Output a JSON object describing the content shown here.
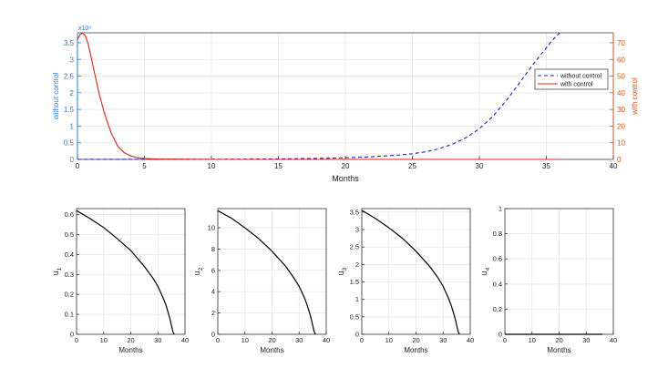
{
  "chart_data": [
    {
      "type": "line",
      "xlabel": "Months",
      "xlim": [
        0,
        40
      ],
      "xticks": [
        0,
        5,
        10,
        15,
        20,
        25,
        30,
        35,
        40
      ],
      "grid": true,
      "legend_position": "top-right",
      "y_left": {
        "label": "without control",
        "lim": [
          0,
          38000
        ],
        "ticks": [
          0,
          5000,
          10000,
          15000,
          20000,
          25000,
          30000,
          35000
        ],
        "tick_labels": [
          "0",
          "0.5",
          "1",
          "1.5",
          "2",
          "2.5",
          "3",
          "3.5"
        ],
        "exponent_label": "x10⁴",
        "color": "#2b7bd6"
      },
      "y_right": {
        "label": "with control",
        "lim": [
          0,
          76
        ],
        "ticks": [
          0,
          10,
          20,
          30,
          40,
          50,
          60,
          70
        ],
        "color": "#d95319"
      },
      "series": [
        {
          "name": "without control",
          "axis": "left",
          "style": "dashed",
          "color": "#1f1fcf",
          "x": [
            0,
            5,
            10,
            15,
            18,
            20,
            22,
            24,
            25,
            26,
            27,
            28,
            29,
            30,
            31,
            32,
            33,
            34,
            35,
            35.5,
            36
          ],
          "y": [
            0,
            20,
            60,
            150,
            300,
            500,
            800,
            1300,
            1700,
            2300,
            3200,
            4600,
            6500,
            9200,
            12900,
            17600,
            23000,
            28500,
            33500,
            36000,
            38000
          ]
        },
        {
          "name": "with control",
          "axis": "right",
          "style": "solid",
          "color": "#e0231b",
          "x": [
            0,
            0.2,
            0.4,
            0.6,
            0.8,
            1.0,
            1.3,
            1.6,
            2.0,
            2.5,
            3.0,
            3.5,
            4.0,
            4.5,
            5.0,
            6,
            10,
            20,
            30,
            36
          ],
          "y": [
            72,
            75,
            76,
            74,
            69,
            62,
            51,
            40,
            28,
            16,
            8,
            4,
            2,
            1,
            0.5,
            0.2,
            0,
            0,
            0,
            0
          ]
        }
      ]
    },
    {
      "type": "line",
      "xlabel": "Months",
      "ylabel": "u",
      "ylabel_sub": "1",
      "xlim": [
        0,
        40
      ],
      "ylim": [
        0,
        0.63
      ],
      "xticks": [
        0,
        10,
        20,
        30,
        40
      ],
      "yticks": [
        0,
        0.1,
        0.2,
        0.3,
        0.4,
        0.5,
        0.6
      ],
      "grid": true,
      "series": [
        {
          "color": "#000000",
          "x": [
            0,
            5,
            10,
            15,
            20,
            25,
            28,
            30,
            32,
            33,
            34,
            34.5,
            35,
            35.5,
            36
          ],
          "y": [
            0.62,
            0.58,
            0.535,
            0.48,
            0.42,
            0.34,
            0.285,
            0.24,
            0.18,
            0.145,
            0.1,
            0.075,
            0.045,
            0.015,
            0
          ]
        }
      ]
    },
    {
      "type": "line",
      "xlabel": "Months",
      "ylabel": "u",
      "ylabel_sub": "2",
      "xlim": [
        0,
        40
      ],
      "ylim": [
        0,
        11.8
      ],
      "xticks": [
        0,
        10,
        20,
        30,
        40
      ],
      "yticks": [
        0,
        2,
        4,
        6,
        8,
        10
      ],
      "grid": true,
      "series": [
        {
          "color": "#000000",
          "x": [
            0,
            5,
            10,
            15,
            20,
            25,
            28,
            30,
            32,
            33,
            34,
            34.5,
            35,
            35.5,
            36
          ],
          "y": [
            11.6,
            10.9,
            10.0,
            9.0,
            7.8,
            6.4,
            5.3,
            4.5,
            3.4,
            2.7,
            1.9,
            1.4,
            0.85,
            0.3,
            0
          ]
        }
      ]
    },
    {
      "type": "line",
      "xlabel": "Months",
      "ylabel": "u",
      "ylabel_sub": "3",
      "xlim": [
        0,
        40
      ],
      "ylim": [
        0,
        3.6
      ],
      "xticks": [
        0,
        10,
        20,
        30,
        40
      ],
      "yticks": [
        0,
        0.5,
        1,
        1.5,
        2,
        2.5,
        3,
        3.5
      ],
      "grid": true,
      "series": [
        {
          "color": "#000000",
          "x": [
            0,
            5,
            10,
            15,
            20,
            25,
            28,
            30,
            32,
            33,
            34,
            34.5,
            35,
            35.5,
            36
          ],
          "y": [
            3.55,
            3.32,
            3.05,
            2.75,
            2.38,
            1.95,
            1.63,
            1.37,
            1.03,
            0.82,
            0.57,
            0.43,
            0.26,
            0.09,
            0
          ]
        }
      ]
    },
    {
      "type": "line",
      "xlabel": "Months",
      "ylabel": "u",
      "ylabel_sub": "4",
      "xlim": [
        0,
        40
      ],
      "ylim": [
        0,
        1
      ],
      "xticks": [
        0,
        10,
        20,
        30,
        40
      ],
      "yticks": [
        0,
        0.2,
        0.4,
        0.6,
        0.8,
        1
      ],
      "yticklabels": [
        "0",
        "0.2",
        "0.4",
        "0.6",
        "0.8",
        "1"
      ],
      "grid": true,
      "series": [
        {
          "color": "#000000",
          "x": [
            0,
            36
          ],
          "y": [
            0,
            0
          ]
        }
      ]
    }
  ]
}
